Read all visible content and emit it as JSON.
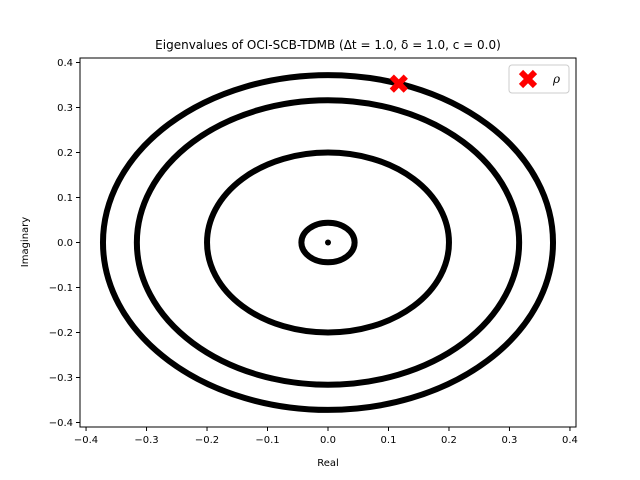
{
  "chart_data": {
    "type": "scatter",
    "title": "Eigenvalues of OCI-SCB-TDMB (Δt = 1.0, δ = 1.0, c = 0.0)",
    "xlabel": "Real",
    "ylabel": "Imaginary",
    "xlim": [
      -0.41,
      0.41
    ],
    "ylim": [
      -0.41,
      0.41
    ],
    "xticks": [
      -0.4,
      -0.3,
      -0.2,
      -0.1,
      0.0,
      0.1,
      0.2,
      0.3,
      0.4
    ],
    "yticks": [
      -0.4,
      -0.3,
      -0.2,
      -0.1,
      0.0,
      0.1,
      0.2,
      0.3,
      0.4
    ],
    "xtick_labels": [
      "−0.4",
      "−0.3",
      "−0.2",
      "−0.1",
      "0.0",
      "0.1",
      "0.2",
      "0.3",
      "0.4"
    ],
    "ytick_labels": [
      "−0.4",
      "−0.3",
      "−0.2",
      "−0.1",
      "0.0",
      "0.1",
      "0.2",
      "0.3",
      "0.4"
    ],
    "grid": false,
    "legend_position": "top-right",
    "series": [
      {
        "kind": "eigenvalue-ring",
        "color": "#000000",
        "rings": [
          {
            "center": [
              0.0,
              0.0
            ],
            "rx": 0.372,
            "ry": 0.372
          },
          {
            "center": [
              0.0,
              0.0
            ],
            "rx": 0.316,
            "ry": 0.316
          },
          {
            "center": [
              0.0,
              0.0
            ],
            "rx": 0.2,
            "ry": 0.2
          },
          {
            "center": [
              0.0,
              0.0
            ],
            "rx": 0.044,
            "ry": 0.044
          }
        ],
        "points": [
          [
            0.0,
            0.0
          ]
        ]
      },
      {
        "name": "ρ",
        "kind": "marker",
        "marker": "X",
        "color": "#ff0000",
        "points": [
          [
            0.117,
            0.353
          ]
        ]
      }
    ]
  }
}
